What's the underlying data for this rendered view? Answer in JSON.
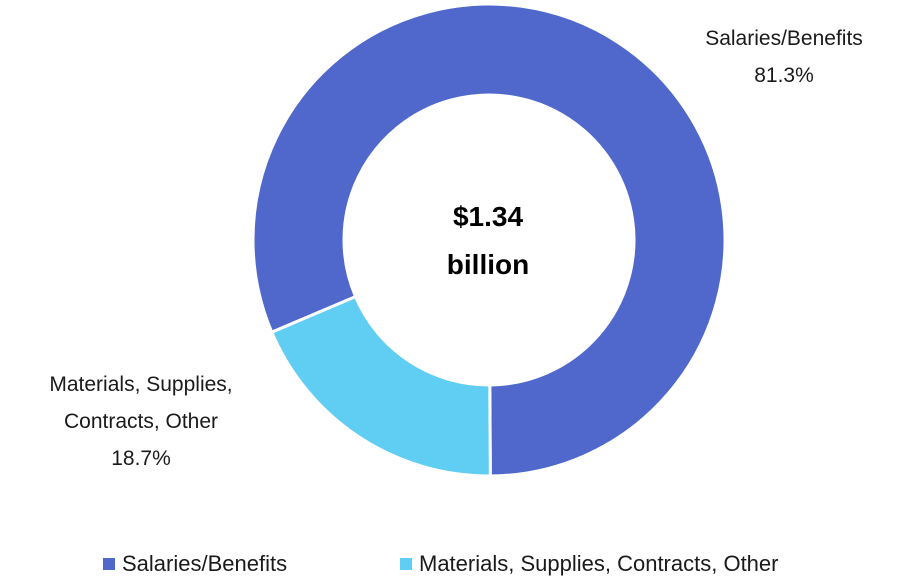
{
  "chart_data": {
    "type": "pie",
    "donut": true,
    "center_label": [
      "$1.34",
      "billion"
    ],
    "slices": [
      {
        "label": "Salaries/Benefits",
        "value": 81.3,
        "value_label": "81.3%",
        "color": "#5068CB"
      },
      {
        "label_lines": [
          "Materials, Supplies,",
          "Contracts, Other"
        ],
        "label": "Materials, Supplies, Contracts, Other",
        "value": 18.7,
        "value_label": "18.7%",
        "color": "#60CDF2"
      }
    ],
    "legend": {
      "placement": "bottom",
      "entries": [
        "Salaries/Benefits",
        "Materials, Supplies, Contracts, Other"
      ]
    }
  }
}
